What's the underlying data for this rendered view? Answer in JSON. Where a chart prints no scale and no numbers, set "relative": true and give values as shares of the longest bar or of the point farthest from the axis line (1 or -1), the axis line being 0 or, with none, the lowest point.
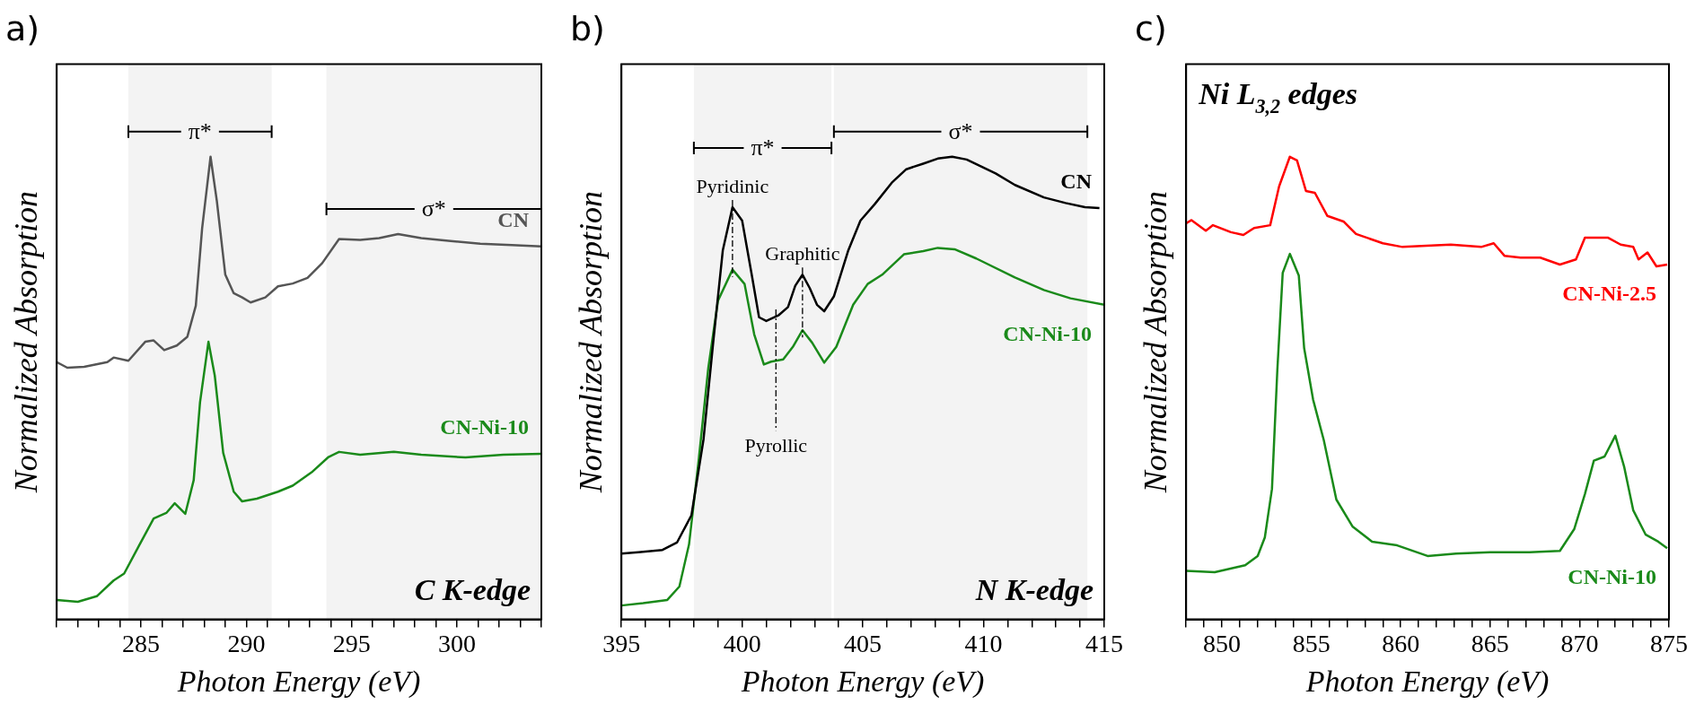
{
  "chart_data": [
    {
      "type": "line",
      "title": "a)",
      "xlabel": "Photon Energy (eV)",
      "ylabel": "Normalized Absorption",
      "relative": true,
      "grid": false,
      "legend": false,
      "marker": "none",
      "xlim": [
        281,
        304
      ],
      "xticks": [
        {
          "value": 281,
          "label": null
        },
        {
          "value": 282,
          "label": null
        },
        {
          "value": 283,
          "label": null
        },
        {
          "value": 284,
          "label": null
        },
        285,
        {
          "value": 286,
          "label": null
        },
        {
          "value": 287,
          "label": null
        },
        {
          "value": 288,
          "label": null
        },
        {
          "value": 289,
          "label": null
        },
        290,
        {
          "value": 291,
          "label": null
        },
        {
          "value": 292,
          "label": null
        },
        {
          "value": 293,
          "label": null
        },
        {
          "value": 294,
          "label": null
        },
        295,
        {
          "value": 296,
          "label": null
        },
        {
          "value": 297,
          "label": null
        },
        {
          "value": 298,
          "label": null
        },
        {
          "value": 299,
          "label": null
        },
        300,
        {
          "value": 301,
          "label": null
        },
        {
          "value": 302,
          "label": null
        },
        {
          "value": 303,
          "label": null
        },
        {
          "value": 304,
          "label": null
        }
      ],
      "series": [
        {
          "name": "CN",
          "color": "#555555",
          "x": [
            281.0,
            281.5,
            282.3,
            283.4,
            283.7,
            284.4,
            285.2,
            285.6,
            286.1,
            286.7,
            287.2,
            287.6,
            287.9,
            288.3,
            288.6,
            289.0,
            289.4,
            289.8,
            290.2,
            290.9,
            291.5,
            292.2,
            292.9,
            293.6,
            294.4,
            295.4,
            296.3,
            297.2,
            298.3,
            299.7,
            301.1,
            302.6,
            304.0
          ],
          "values": [
            0.556,
            0.544,
            0.546,
            0.556,
            0.566,
            0.559,
            0.6,
            0.603,
            0.582,
            0.592,
            0.611,
            0.678,
            0.845,
            1.0,
            0.904,
            0.745,
            0.705,
            0.696,
            0.685,
            0.696,
            0.72,
            0.726,
            0.738,
            0.77,
            0.822,
            0.82,
            0.824,
            0.833,
            0.824,
            0.818,
            0.812,
            0.809,
            0.806
          ]
        },
        {
          "name": "CN-Ni-10",
          "color": "#1a8a1a",
          "x": [
            281.0,
            282.0,
            282.9,
            283.7,
            284.2,
            284.9,
            285.6,
            286.2,
            286.6,
            287.1,
            287.5,
            287.8,
            288.2,
            288.5,
            288.9,
            289.4,
            289.8,
            290.5,
            291.5,
            292.2,
            293.1,
            293.9,
            294.4,
            295.4,
            297.0,
            298.3,
            300.4,
            302.2,
            304.0
          ],
          "values": [
            0.042,
            0.038,
            0.05,
            0.084,
            0.099,
            0.159,
            0.218,
            0.23,
            0.251,
            0.228,
            0.301,
            0.469,
            0.6,
            0.527,
            0.36,
            0.276,
            0.255,
            0.261,
            0.276,
            0.289,
            0.318,
            0.351,
            0.362,
            0.356,
            0.362,
            0.356,
            0.35,
            0.356,
            0.358
          ]
        }
      ],
      "bands": [
        {
          "axis": "x",
          "from": 284.4,
          "to": 291.2,
          "label": "π*"
        },
        {
          "axis": "x",
          "from": 293.8,
          "to": 304.0,
          "label": "σ*"
        }
      ],
      "annotations": [
        "C K-edge"
      ]
    },
    {
      "type": "line",
      "title": "b)",
      "xlabel": "Photon Energy (eV)",
      "ylabel": "Normalized Absorption",
      "relative": true,
      "grid": false,
      "legend": false,
      "marker": "none",
      "xlim": [
        395,
        415
      ],
      "xticks": [
        395,
        {
          "value": 396,
          "label": null
        },
        {
          "value": 397,
          "label": null
        },
        {
          "value": 398,
          "label": null
        },
        {
          "value": 399,
          "label": null
        },
        400,
        {
          "value": 401,
          "label": null
        },
        {
          "value": 402,
          "label": null
        },
        {
          "value": 403,
          "label": null
        },
        {
          "value": 404,
          "label": null
        },
        405,
        {
          "value": 406,
          "label": null
        },
        {
          "value": 407,
          "label": null
        },
        {
          "value": 408,
          "label": null
        },
        {
          "value": 409,
          "label": null
        },
        410,
        {
          "value": 411,
          "label": null
        },
        {
          "value": 412,
          "label": null
        },
        {
          "value": 413,
          "label": null
        },
        {
          "value": 414,
          "label": null
        },
        415
      ],
      "series": [
        {
          "name": "CN",
          "color": "#000000",
          "x": [
            395.0,
            395.7,
            396.7,
            397.3,
            397.9,
            398.4,
            398.8,
            399.2,
            399.6,
            400.0,
            400.4,
            400.7,
            401.0,
            401.5,
            401.9,
            402.2,
            402.5,
            402.8,
            403.1,
            403.4,
            403.8,
            404.4,
            404.9,
            405.5,
            406.2,
            406.8,
            407.5,
            408.1,
            408.7,
            409.3,
            410.5,
            411.3,
            412.5,
            413.4,
            414.2,
            414.8
          ],
          "values": [
            0.142,
            0.145,
            0.15,
            0.166,
            0.225,
            0.389,
            0.598,
            0.798,
            0.891,
            0.862,
            0.744,
            0.653,
            0.645,
            0.657,
            0.675,
            0.721,
            0.745,
            0.716,
            0.68,
            0.666,
            0.698,
            0.798,
            0.862,
            0.898,
            0.944,
            0.973,
            0.985,
            0.996,
            1.0,
            0.994,
            0.964,
            0.939,
            0.912,
            0.9,
            0.891,
            0.889
          ]
        },
        {
          "name": "CN-Ni-10",
          "color": "#1a8a1a",
          "x": [
            395.0,
            395.9,
            396.9,
            397.4,
            397.8,
            398.2,
            398.6,
            399.0,
            399.6,
            400.1,
            400.5,
            400.9,
            401.2,
            401.7,
            402.1,
            402.5,
            402.9,
            403.4,
            403.9,
            404.6,
            405.2,
            405.8,
            406.7,
            407.5,
            408.1,
            408.8,
            409.7,
            411.3,
            412.5,
            413.6,
            415.0
          ],
          "values": [
            0.03,
            0.035,
            0.042,
            0.071,
            0.162,
            0.344,
            0.544,
            0.689,
            0.756,
            0.725,
            0.616,
            0.551,
            0.557,
            0.562,
            0.589,
            0.625,
            0.598,
            0.555,
            0.589,
            0.68,
            0.725,
            0.745,
            0.789,
            0.796,
            0.803,
            0.8,
            0.78,
            0.739,
            0.712,
            0.694,
            0.68
          ]
        }
      ],
      "ref_lines": [
        {
          "axis": "x",
          "value": 399.6,
          "label": "Pyridinic",
          "line_style": "dashed"
        },
        {
          "axis": "x",
          "value": 401.4,
          "label": "Pyrollic",
          "line_style": "dashed"
        },
        {
          "axis": "x",
          "value": 402.5,
          "label": "Graphitic",
          "line_style": "dashed"
        }
      ],
      "bands": [
        {
          "axis": "x",
          "from": 398.0,
          "to": 403.7,
          "label": "π*"
        },
        {
          "axis": "x",
          "from": 403.8,
          "to": 414.3,
          "label": "σ*"
        }
      ],
      "annotations": [
        "N K-edge"
      ]
    },
    {
      "type": "line",
      "title": "c)",
      "xlabel": "Photon Energy (eV)",
      "ylabel": "Normalized Absorption",
      "relative": true,
      "grid": false,
      "legend": false,
      "marker": "none",
      "xlim": [
        848,
        875
      ],
      "xticks": [
        {
          "value": 848,
          "label": null
        },
        {
          "value": 849,
          "label": null
        },
        850,
        {
          "value": 851,
          "label": null
        },
        {
          "value": 852,
          "label": null
        },
        {
          "value": 853,
          "label": null
        },
        {
          "value": 854,
          "label": null
        },
        855,
        {
          "value": 856,
          "label": null
        },
        {
          "value": 857,
          "label": null
        },
        {
          "value": 858,
          "label": null
        },
        {
          "value": 859,
          "label": null
        },
        860,
        {
          "value": 861,
          "label": null
        },
        {
          "value": 862,
          "label": null
        },
        {
          "value": 863,
          "label": null
        },
        {
          "value": 864,
          "label": null
        },
        865,
        {
          "value": 866,
          "label": null
        },
        {
          "value": 867,
          "label": null
        },
        {
          "value": 868,
          "label": null
        },
        {
          "value": 869,
          "label": null
        },
        870,
        {
          "value": 871,
          "label": null
        },
        {
          "value": 872,
          "label": null
        },
        {
          "value": 873,
          "label": null
        },
        {
          "value": 874,
          "label": null
        },
        875
      ],
      "series": [
        {
          "name": "CN-Ni-2.5",
          "color": "#ff0000",
          "x": [
            848.0,
            848.3,
            849.1,
            849.5,
            850.5,
            851.2,
            851.8,
            852.7,
            853.2,
            853.8,
            854.2,
            854.7,
            855.2,
            855.9,
            856.8,
            857.5,
            859.0,
            860.1,
            861.7,
            862.8,
            864.5,
            865.2,
            865.8,
            866.7,
            867.8,
            868.9,
            869.8,
            870.3,
            871.6,
            872.3,
            873.0,
            873.3,
            873.8,
            874.3,
            874.9
          ],
          "values": [
            0.856,
            0.863,
            0.84,
            0.852,
            0.837,
            0.831,
            0.846,
            0.852,
            0.936,
            1.0,
            0.992,
            0.926,
            0.922,
            0.872,
            0.86,
            0.833,
            0.813,
            0.805,
            0.808,
            0.81,
            0.805,
            0.813,
            0.786,
            0.782,
            0.782,
            0.767,
            0.778,
            0.825,
            0.825,
            0.81,
            0.805,
            0.778,
            0.793,
            0.763,
            0.767
          ]
        },
        {
          "name": "CN-Ni-10",
          "color": "#1a8a1a",
          "x": [
            848.0,
            849.6,
            851.3,
            852.0,
            852.4,
            852.8,
            853.1,
            853.4,
            853.8,
            854.3,
            854.6,
            855.1,
            855.7,
            856.4,
            857.3,
            858.4,
            859.8,
            861.5,
            863.1,
            865.0,
            867.2,
            868.9,
            869.7,
            870.3,
            870.8,
            871.4,
            872.0,
            872.5,
            873.0,
            873.7,
            874.4,
            874.9
          ],
          "values": [
            0.105,
            0.102,
            0.117,
            0.137,
            0.177,
            0.282,
            0.539,
            0.749,
            0.79,
            0.743,
            0.586,
            0.475,
            0.387,
            0.259,
            0.201,
            0.168,
            0.16,
            0.137,
            0.142,
            0.145,
            0.145,
            0.148,
            0.195,
            0.271,
            0.343,
            0.352,
            0.397,
            0.329,
            0.236,
            0.183,
            0.168,
            0.154
          ]
        }
      ],
      "annotations": [
        "Ni L$_{3,2}$ edges"
      ]
    }
  ]
}
